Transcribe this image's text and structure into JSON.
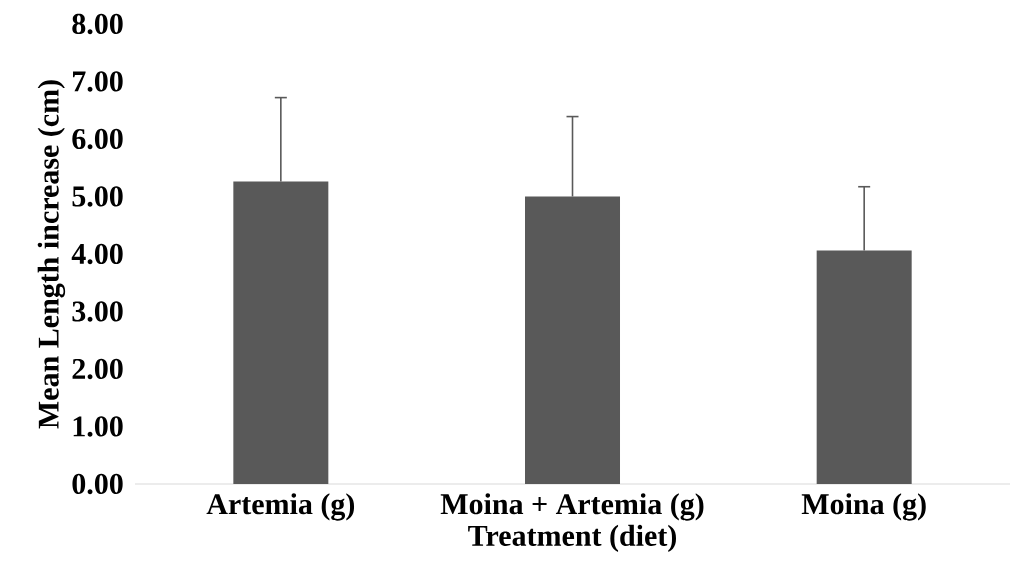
{
  "chart_data": {
    "type": "bar",
    "xlabel": "Treatment (diet)",
    "ylabel": "Mean Length increase (cm)",
    "categories": [
      "Artemia (g)",
      "Moina + Artemia (g)",
      "Moina (g)"
    ],
    "values": [
      5.26,
      5.0,
      4.06
    ],
    "errors": [
      [
        5.26,
        6.72
      ],
      [
        5.0,
        6.39
      ],
      [
        4.06,
        5.17
      ]
    ],
    "color": "#595959",
    "ylim": [
      0,
      8
    ],
    "yticks": [
      {
        "value": 0,
        "label": "0.00"
      },
      {
        "value": 1,
        "label": "1.00"
      },
      {
        "value": 2,
        "label": "2.00"
      },
      {
        "value": 3,
        "label": "3.00"
      },
      {
        "value": 4,
        "label": "4.00"
      },
      {
        "value": 5,
        "label": "5.00"
      },
      {
        "value": 6,
        "label": "6.00"
      },
      {
        "value": 7,
        "label": "7.00"
      },
      {
        "value": 8,
        "label": "8.00"
      }
    ],
    "grid": false
  }
}
